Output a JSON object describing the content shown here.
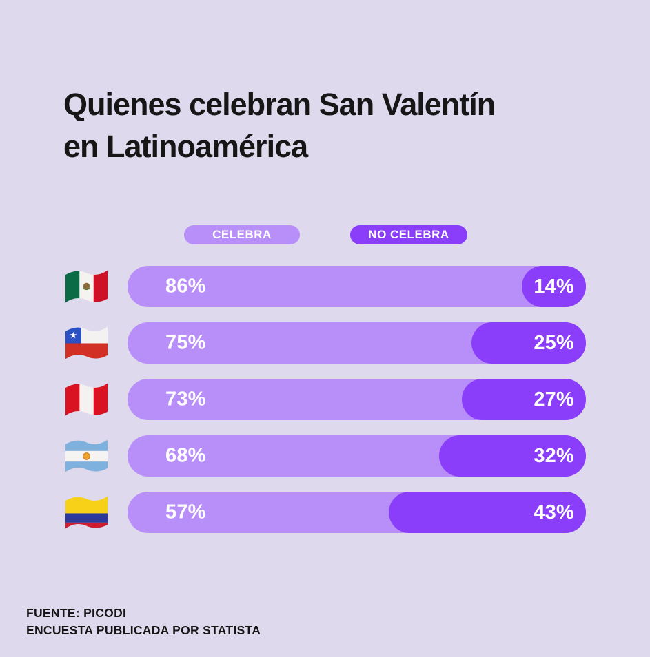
{
  "title": {
    "line1": "Quienes celebran San Valentín",
    "line2": "en Latinoamérica"
  },
  "legend": {
    "celebra": "CELEBRA",
    "no_celebra": "NO CELEBRA"
  },
  "rows": [
    {
      "country": "México",
      "flag": "mexico-flag-icon",
      "celebra_label": "86%",
      "no_celebra_label": "14%"
    },
    {
      "country": "Chile",
      "flag": "chile-flag-icon",
      "celebra_label": "75%",
      "no_celebra_label": "25%"
    },
    {
      "country": "Perú",
      "flag": "peru-flag-icon",
      "celebra_label": "73%",
      "no_celebra_label": "27%"
    },
    {
      "country": "Argentina",
      "flag": "argentina-flag-icon",
      "celebra_label": "68%",
      "no_celebra_label": "32%"
    },
    {
      "country": "Colombia",
      "flag": "colombia-flag-icon",
      "celebra_label": "57%",
      "no_celebra_label": "43%"
    }
  ],
  "chart_data": {
    "type": "bar",
    "orientation": "horizontal",
    "stacked": true,
    "title": "Quienes celebran San Valentín en Latinoamérica",
    "categories": [
      "México",
      "Chile",
      "Perú",
      "Argentina",
      "Colombia"
    ],
    "series": [
      {
        "name": "Celebra",
        "color": "#B88FF8",
        "values": [
          86,
          75,
          73,
          68,
          57
        ]
      },
      {
        "name": "No celebra",
        "color": "#8B3EFA",
        "values": [
          14,
          25,
          27,
          32,
          43
        ]
      }
    ],
    "value_format": "percent",
    "xlim": [
      0,
      100
    ],
    "grid": false,
    "legend_position": "top"
  },
  "footer": {
    "line1": "FUENTE: PICODI",
    "line2": "ENCUESTA PUBLICADA POR STATISTA"
  },
  "colors": {
    "background": "#DED9EC",
    "celebra": "#B88FF8",
    "no_celebra": "#8B3EFA",
    "text": "#161616",
    "label_text": "#FFFFFF"
  }
}
